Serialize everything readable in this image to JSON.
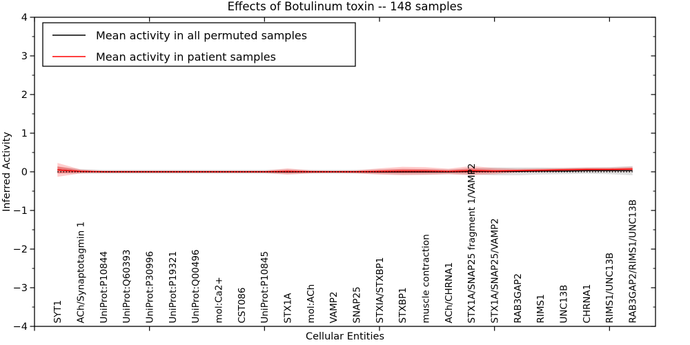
{
  "title": "Effects of Botulinum toxin -- 148 samples",
  "legend": {
    "position": "upper left",
    "items": [
      {
        "label": "Mean activity in all permuted samples",
        "color": "#000000"
      },
      {
        "label": "Mean activity in patient samples",
        "color": "#ff0000"
      }
    ]
  },
  "chart_data": {
    "type": "line",
    "title": "Effects of Botulinum toxin -- 148 samples",
    "xlabel": "Cellular Entities",
    "ylabel": "Inferred Activity",
    "xlim": [
      0,
      27
    ],
    "ylim": [
      -4,
      4
    ],
    "grid": false,
    "legend_position": "upper left",
    "y_tick_values": [
      4,
      3,
      2,
      1,
      0,
      -1,
      -2,
      -3,
      -4
    ],
    "y_tick_labels": [
      "4",
      "3",
      "2",
      "1",
      "0",
      "−1",
      "−2",
      "−3",
      "−4"
    ],
    "y_minor_tick_step": 0.5,
    "x_major_ticks": [
      0,
      5,
      10,
      15,
      20,
      25
    ],
    "categories": [
      "SYT1",
      "ACh/Synaptotagmin 1",
      "UniProt:P10844",
      "UniProt:Q60393",
      "UniProt:P30996",
      "UniProt:P19321",
      "UniProt:Q00496",
      "mol:Ca2+",
      "CST086",
      "UniProt:P10845",
      "STX1A",
      "mol:ACh",
      "VAMP2",
      "SNAP25",
      "STXIA/STXBP1",
      "STXBP1",
      "muscle contraction",
      "ACh/CHRNA1",
      "STX1A/SNAP25 fragment 1/VAMP2",
      "STX1A/SNAP25/VAMP2",
      "RAB3GAP2",
      "RIMS1",
      "UNC13B",
      "CHRNA1",
      "RIMS1/UNC13B",
      "RAB3GAP2/RIMS1/UNC13B"
    ],
    "series": [
      {
        "name": "Mean activity in all permuted samples",
        "color": "#000000",
        "style": "solid",
        "values": [
          0.05,
          0.01,
          0,
          0,
          0,
          0,
          0,
          0,
          0,
          0,
          0,
          0,
          0,
          0,
          0,
          0,
          0,
          0,
          0.01,
          0.01,
          0.01,
          0.02,
          0.02,
          0.03,
          0.03,
          0.03
        ]
      },
      {
        "name": "Mean activity in patient samples",
        "color": "#ff0000",
        "style": "solid",
        "values": [
          0.05,
          0.01,
          0,
          0,
          0,
          0,
          0,
          0,
          0,
          0,
          0.01,
          0,
          0,
          0,
          0.01,
          0.02,
          0.02,
          0.01,
          0.03,
          0.02,
          0.03,
          0.04,
          0.05,
          0.06,
          0.06,
          0.07
        ]
      },
      {
        "name": "zero reference",
        "color": "#000000",
        "style": "dotted",
        "values": [
          0,
          0,
          0,
          0,
          0,
          0,
          0,
          0,
          0,
          0,
          0,
          0,
          0,
          0,
          0,
          0,
          0,
          0,
          0,
          0,
          0,
          0,
          0,
          0,
          0,
          0
        ]
      }
    ],
    "bands": [
      {
        "name": "permuted-std",
        "center_series": 0,
        "color": "#888888",
        "opacity": 0.28,
        "half_widths": [
          0.09,
          0.06,
          0.05,
          0.05,
          0.05,
          0.05,
          0.05,
          0.05,
          0.05,
          0.05,
          0.06,
          0.05,
          0.05,
          0.05,
          0.06,
          0.07,
          0.07,
          0.06,
          0.08,
          0.1,
          0.1,
          0.09,
          0.08,
          0.08,
          0.09,
          0.12
        ]
      },
      {
        "name": "patient-std-outer",
        "center_series": 1,
        "color": "#ff0000",
        "opacity": 0.2,
        "half_widths": [
          0.18,
          0.05,
          0.03,
          0.03,
          0.03,
          0.03,
          0.03,
          0.03,
          0.03,
          0.03,
          0.08,
          0.04,
          0.03,
          0.04,
          0.08,
          0.11,
          0.1,
          0.07,
          0.12,
          0.08,
          0.05,
          0.05,
          0.05,
          0.05,
          0.05,
          0.06
        ]
      },
      {
        "name": "patient-std-inner",
        "center_series": 1,
        "color": "#ff0000",
        "opacity": 0.3,
        "half_widths": [
          0.09,
          0.03,
          0.015,
          0.015,
          0.015,
          0.015,
          0.015,
          0.015,
          0.015,
          0.015,
          0.04,
          0.02,
          0.015,
          0.02,
          0.04,
          0.055,
          0.05,
          0.035,
          0.06,
          0.04,
          0.025,
          0.025,
          0.025,
          0.025,
          0.025,
          0.03
        ]
      }
    ]
  }
}
